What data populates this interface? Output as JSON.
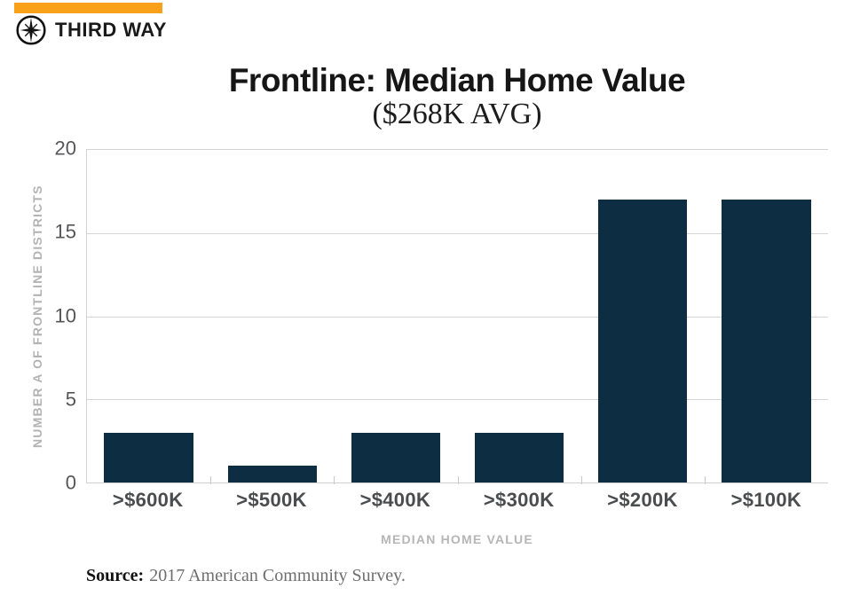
{
  "brand": {
    "name": "THIRD WAY",
    "accent_color": "#F9A11B",
    "logo_icon": "compass-icon"
  },
  "chart_data": {
    "type": "bar",
    "title": "Frontline: Median Home Value",
    "subtitle": "($268K AVG)",
    "categories": [
      ">$600K",
      ">$500K",
      ">$400K",
      ">$300K",
      ">$200K",
      ">$100K"
    ],
    "values": [
      3,
      1,
      3,
      3,
      17,
      17
    ],
    "xlabel": "MEDIAN HOME VALUE",
    "ylabel": "NUMBER A OF FRONTLINE DISTRICTS",
    "ylim": [
      0,
      20
    ],
    "yticks": [
      0,
      5,
      10,
      15,
      20
    ],
    "bar_color": "#0D2D42",
    "grid": true,
    "legend": false
  },
  "source": {
    "label": "Source:",
    "text": "2017 American Community Survey."
  }
}
